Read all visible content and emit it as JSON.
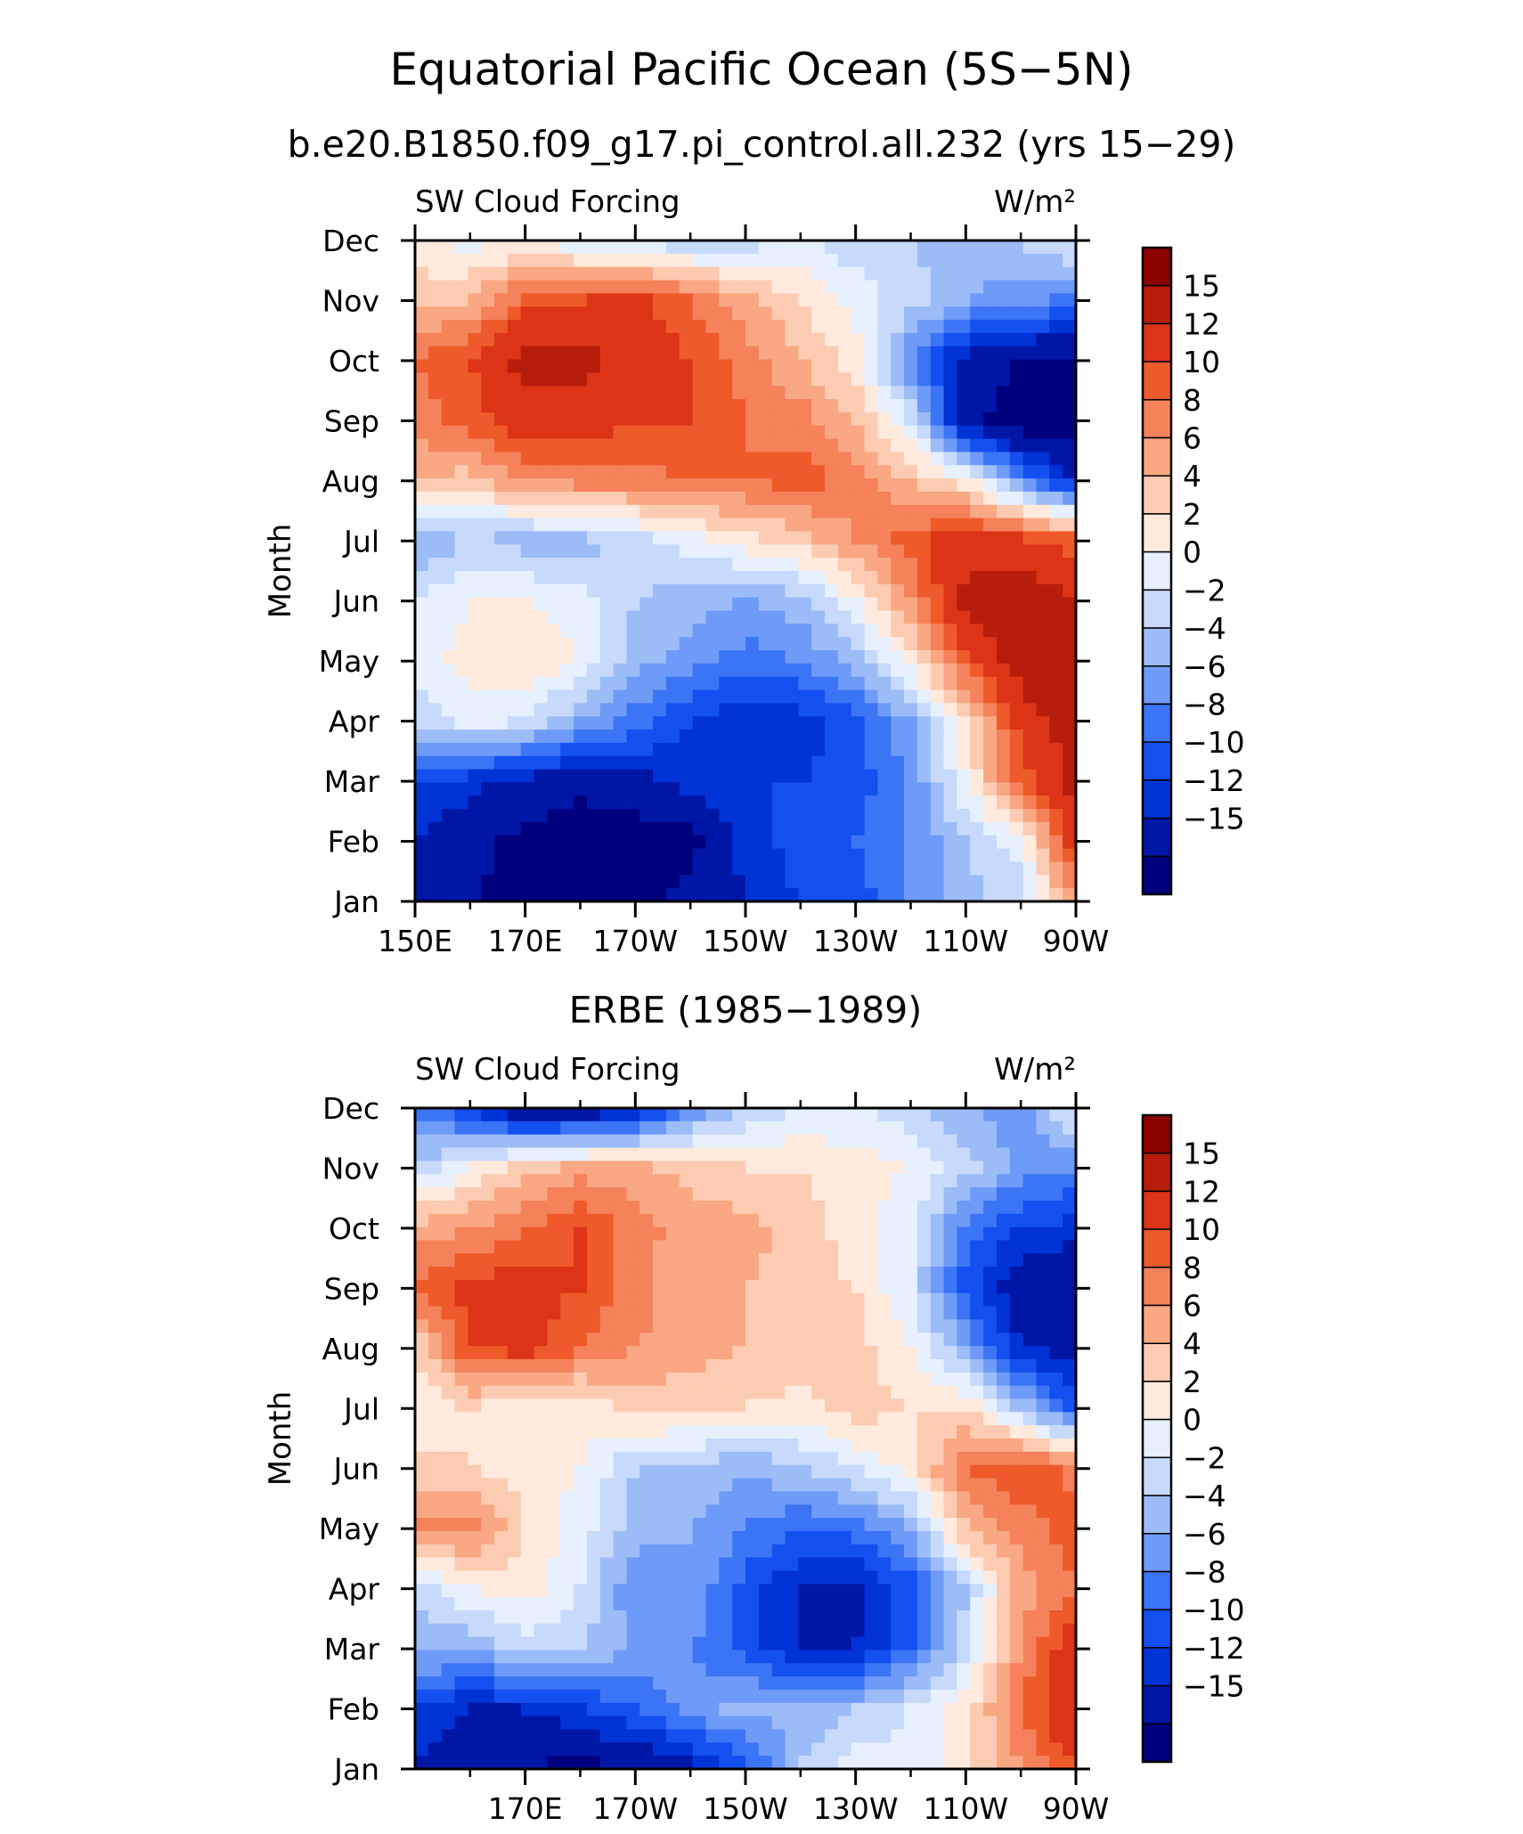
{
  "figure": {
    "title": "Equatorial Pacific Ocean (5S−5N)",
    "subtitle": "b.e20.B1850.f09_g17.pi_control.all.232 (yrs 15−29)",
    "panel2_title": "ERBE (1985−1989)"
  },
  "colors": {
    "levels_palette": [
      "#00007f",
      "#0016a6",
      "#0033d6",
      "#1450f0",
      "#3c74f6",
      "#6e9bf7",
      "#9cbcf8",
      "#c7dafc",
      "#e6f0ff",
      "#ffeadd",
      "#fccbb1",
      "#f9a883",
      "#f5825a",
      "#ef5a2b",
      "#dc3417",
      "#b81c0b",
      "#8d0000"
    ]
  },
  "chart_data": [
    {
      "type": "heatmap",
      "top_label": "SW Cloud Forcing",
      "units": "W/m²",
      "ylabel": "Month",
      "x_ticks": [
        "150E",
        "170E",
        "170W",
        "150W",
        "130W",
        "110W",
        "90W"
      ],
      "x_tick_values": [
        150,
        170,
        190,
        210,
        230,
        250,
        270
      ],
      "xlim": [
        150,
        270
      ],
      "y_ticks": [
        "Jan",
        "Feb",
        "Mar",
        "Apr",
        "May",
        "Jun",
        "Jul",
        "Aug",
        "Sep",
        "Oct",
        "Nov",
        "Dec"
      ],
      "colorbar_labels": [
        "15",
        "12",
        "10",
        "8",
        "6",
        "4",
        "2",
        "0",
        "−2",
        "−4",
        "−6",
        "−8",
        "−10",
        "−12",
        "−15"
      ],
      "levels": [
        -15,
        -12,
        -10,
        -8,
        -6,
        -4,
        -2,
        0,
        2,
        4,
        6,
        8,
        10,
        12,
        15
      ],
      "x": [
        150,
        160,
        170,
        180,
        190,
        200,
        210,
        220,
        230,
        240,
        250,
        260,
        270
      ],
      "z": [
        [
          -13,
          -15,
          -16,
          -17,
          -16,
          -14,
          -12,
          -10,
          -9,
          -6,
          -3,
          -1,
          8
        ],
        [
          -12,
          -14,
          -16,
          -17,
          -17,
          -16,
          -11,
          -9,
          -8,
          -6,
          -2,
          1,
          14
        ],
        [
          -10,
          -11,
          -13,
          -14,
          -13,
          -11,
          -10,
          -10,
          -9,
          -6,
          2,
          11,
          16
        ],
        [
          -2,
          1,
          0,
          -4,
          -7,
          -10,
          -12,
          -11,
          -9,
          -4,
          4,
          13,
          17
        ],
        [
          1,
          3,
          4,
          2,
          -3,
          -5,
          -7,
          -6,
          -3,
          3,
          11,
          17,
          17
        ],
        [
          0,
          2,
          2,
          1,
          -2,
          -3,
          -4,
          -3,
          2,
          8,
          16,
          17,
          15
        ],
        [
          -4,
          -2,
          -3,
          -3,
          -1,
          1,
          3,
          5,
          8,
          11,
          14,
          13,
          11
        ],
        [
          6,
          5,
          8,
          9,
          9,
          10,
          10,
          11,
          9,
          6,
          3,
          -6,
          -12
        ],
        [
          9,
          11,
          14,
          14,
          12,
          12,
          10,
          9,
          6,
          0,
          -14,
          -17,
          -17
        ],
        [
          10,
          12,
          16,
          16,
          14,
          12,
          9,
          6,
          3,
          -6,
          -13,
          -15,
          -16
        ],
        [
          5,
          6,
          11,
          12,
          13,
          10,
          7,
          4,
          1,
          -1,
          -4,
          -5,
          -7
        ],
        [
          3,
          1,
          2,
          0,
          -1,
          -2,
          -1,
          0,
          -1,
          -2,
          -3,
          -2,
          1
        ]
      ]
    },
    {
      "type": "heatmap",
      "top_label": "SW Cloud Forcing",
      "units": "W/m²",
      "ylabel": "Month",
      "x_ticks": [
        "170E",
        "170W",
        "150W",
        "130W",
        "110W",
        "90W"
      ],
      "x_tick_values": [
        170,
        190,
        210,
        230,
        250,
        270
      ],
      "xlim": [
        150,
        270
      ],
      "y_ticks": [
        "Jan",
        "Feb",
        "Mar",
        "Apr",
        "May",
        "Jun",
        "Jul",
        "Aug",
        "Sep",
        "Oct",
        "Nov",
        "Dec"
      ],
      "colorbar_labels": [
        "15",
        "12",
        "10",
        "8",
        "6",
        "4",
        "2",
        "0",
        "−2",
        "−4",
        "−6",
        "−8",
        "−10",
        "−12",
        "−15"
      ],
      "levels": [
        -15,
        -12,
        -10,
        -8,
        -6,
        -4,
        -2,
        0,
        2,
        4,
        6,
        8,
        10,
        12,
        15
      ],
      "x": [
        150,
        160,
        170,
        180,
        190,
        200,
        210,
        220,
        230,
        240,
        250,
        260,
        270
      ],
      "z": [
        [
          -12,
          -14,
          -15,
          -16,
          -15,
          -13,
          -9,
          -2,
          1,
          1,
          3,
          8,
          12
        ],
        [
          -10,
          -12,
          -12,
          -10,
          -8,
          -5,
          -3,
          -4,
          -2,
          0,
          3,
          10,
          15
        ],
        [
          -3,
          -4,
          -1,
          -2,
          -4,
          -6,
          -9,
          -12,
          -12,
          -8,
          -1,
          8,
          14
        ],
        [
          -2,
          2,
          3,
          0,
          -6,
          -4,
          -9,
          -12,
          -13,
          -9,
          -2,
          7,
          10
        ],
        [
          9,
          9,
          4,
          1,
          -3,
          -4,
          -6,
          -8,
          -7,
          -4,
          6,
          9,
          11
        ],
        [
          5,
          4,
          3,
          2,
          -2,
          -2,
          -4,
          -2,
          0,
          3,
          10,
          12,
          9
        ],
        [
          2,
          4,
          2,
          2,
          5,
          4,
          4,
          3,
          5,
          4,
          4,
          -2,
          -9
        ],
        [
          4,
          12,
          13,
          10,
          8,
          7,
          6,
          6,
          5,
          2,
          -4,
          -12,
          -13
        ],
        [
          10,
          13,
          13,
          12,
          9,
          6,
          6,
          5,
          4,
          0,
          -9,
          -14,
          -15
        ],
        [
          7,
          8,
          10,
          12,
          9,
          7,
          7,
          5,
          3,
          0,
          -7,
          -10,
          -11
        ],
        [
          -2,
          2,
          5,
          7,
          7,
          5,
          4,
          4,
          3,
          2,
          -1,
          -5,
          -6
        ],
        [
          -6,
          -11,
          -15,
          -15,
          -13,
          -6,
          -2,
          0,
          0,
          -1,
          -4,
          -5,
          1
        ]
      ]
    }
  ]
}
